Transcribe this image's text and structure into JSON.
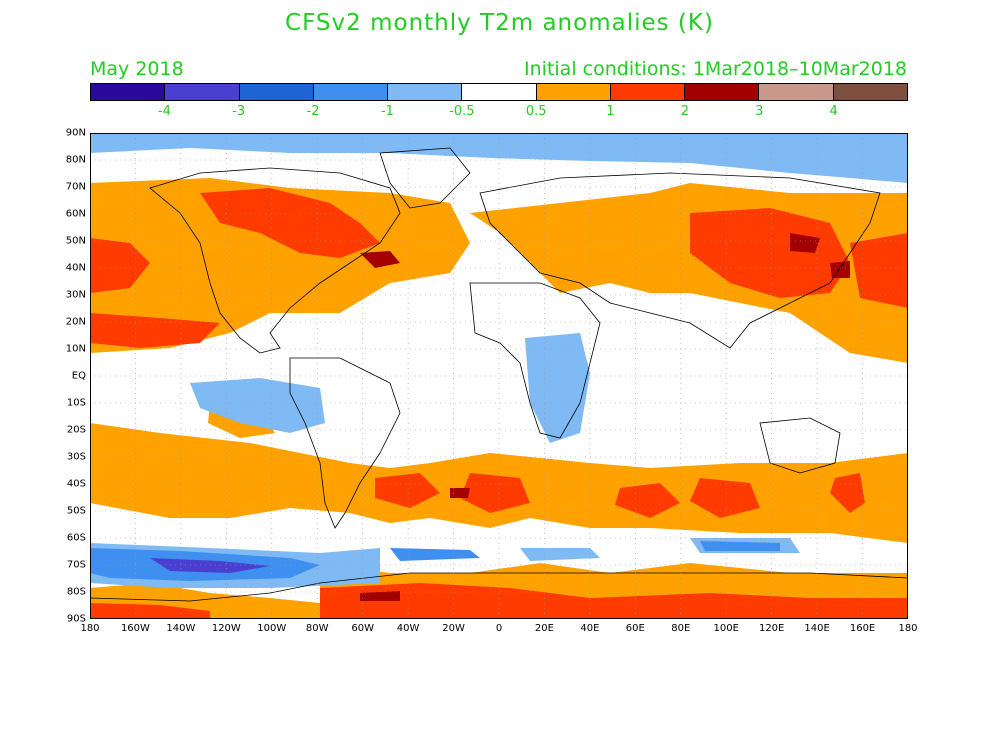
{
  "title": "CFSv2 monthly T2m anomalies (K)",
  "valid_month": "May 2018",
  "initial_conditions": "Initial conditions: 1Mar2018–10Mar2018",
  "colorbar": {
    "colors": [
      "#2a0a9c",
      "#4a3fd0",
      "#1f64d4",
      "#3f8ff0",
      "#7fbaf5",
      "#ffffff",
      "#ffa200",
      "#ff3b00",
      "#a30000",
      "#c99a8c",
      "#7f4f40"
    ],
    "labels": [
      "-4",
      "-3",
      "-2",
      "-1",
      "-0.5",
      "0.5",
      "1",
      "2",
      "3",
      "4"
    ]
  },
  "lat_labels": [
    "90N",
    "80N",
    "70N",
    "60N",
    "50N",
    "40N",
    "30N",
    "20N",
    "10N",
    "EQ",
    "10S",
    "20S",
    "30S",
    "40S",
    "50S",
    "60S",
    "70S",
    "80S",
    "90S"
  ],
  "lon_labels": [
    "180",
    "160W",
    "140W",
    "120W",
    "100W",
    "80W",
    "60W",
    "40W",
    "20W",
    "0",
    "20E",
    "40E",
    "60E",
    "80E",
    "100E",
    "120E",
    "140E",
    "160E",
    "180"
  ]
}
